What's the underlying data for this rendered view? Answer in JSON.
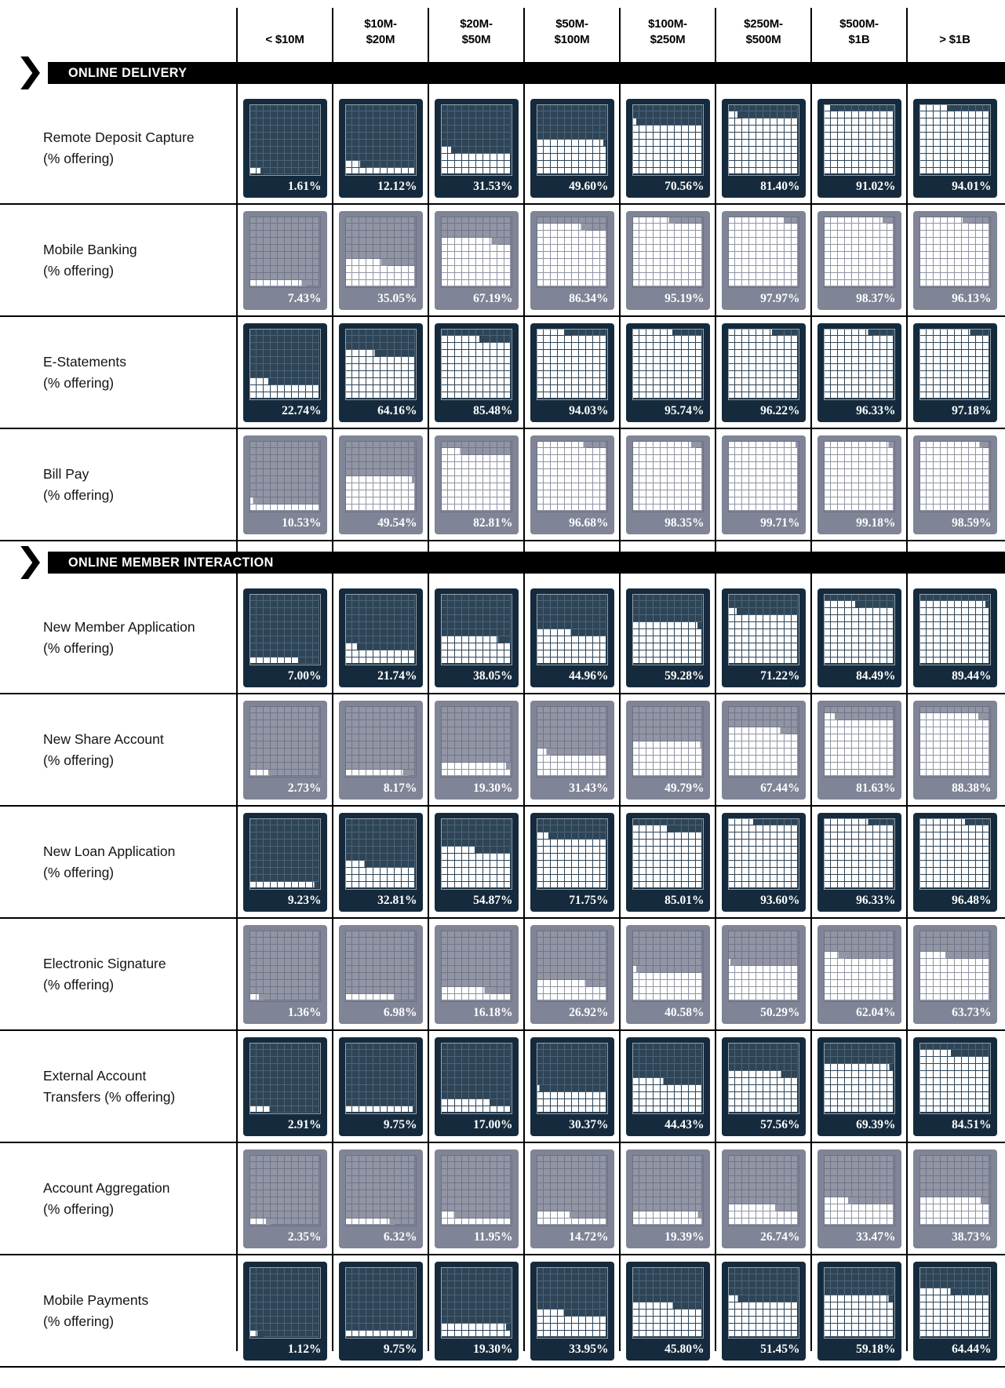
{
  "colors": {
    "navy_cell": "#152b3d",
    "navy_chart": "#2e4558",
    "navy_grid_empty": "#4d6375",
    "navy_chart_border": "#97a3ae",
    "gray_cell": "#7f8496",
    "gray_chart": "#9195a4",
    "gray_grid_empty": "#71758a",
    "gray_chart_border": "#6d7183",
    "fill_white": "#ffffff",
    "banner_black": "#000000"
  },
  "column_headers_display": [
    "< $10M",
    "$10M-\n$20M",
    "$20M-\n$50M",
    "$50M-\n$100M",
    "$100M-\n$250M",
    "$250M-\n$500M",
    "$500M-\n$1B",
    "> $1B"
  ],
  "chart_data": {
    "type": "table",
    "subtype": "waffle-small-multiples",
    "unit": "%",
    "note": "Each cell is a 10x10 waffle grid; one square = 1%; white squares fill bottom-up, left-to-right; value printed lower right.",
    "columns": [
      "< $10M",
      "$10M-$20M",
      "$20M-$50M",
      "$50M-$100M",
      "$100M-$250M",
      "$250M-$500M",
      "$500M-$1B",
      "> $1B"
    ],
    "sections": [
      {
        "title": "ONLINE DELIVERY",
        "rows": [
          {
            "label": "Remote Deposit Capture\n(% offering)",
            "values": [
              1.61,
              12.12,
              31.53,
              49.6,
              70.56,
              81.4,
              91.02,
              94.01
            ]
          },
          {
            "label": "Mobile Banking\n(% offering)",
            "values": [
              7.43,
              35.05,
              67.19,
              86.34,
              95.19,
              97.97,
              98.37,
              96.13
            ]
          },
          {
            "label": "E-Statements\n(% offering)",
            "values": [
              22.74,
              64.16,
              85.48,
              94.03,
              95.74,
              96.22,
              96.33,
              97.18
            ]
          },
          {
            "label": "Bill Pay\n(% offering)",
            "values": [
              10.53,
              49.54,
              82.81,
              96.68,
              98.35,
              99.71,
              99.18,
              98.59
            ]
          }
        ]
      },
      {
        "title": "ONLINE MEMBER INTERACTION",
        "rows": [
          {
            "label": "New Member Application\n(% offering)",
            "values": [
              7.0,
              21.74,
              38.05,
              44.96,
              59.28,
              71.22,
              84.49,
              89.44
            ]
          },
          {
            "label": "New Share Account\n(% offering)",
            "values": [
              2.73,
              8.17,
              19.3,
              31.43,
              49.79,
              67.44,
              81.63,
              88.38
            ]
          },
          {
            "label": "New Loan Application\n(% offering)",
            "values": [
              9.23,
              32.81,
              54.87,
              71.75,
              85.01,
              93.6,
              96.33,
              96.48
            ]
          },
          {
            "label": "Electronic Signature\n(% offering)",
            "values": [
              1.36,
              6.98,
              16.18,
              26.92,
              40.58,
              50.29,
              62.04,
              63.73
            ]
          },
          {
            "label": "External Account\nTransfers (% offering)",
            "values": [
              2.91,
              9.75,
              17.0,
              30.37,
              44.43,
              57.56,
              69.39,
              84.51
            ]
          },
          {
            "label": "Account Aggregation\n(% offering)",
            "values": [
              2.35,
              6.32,
              11.95,
              14.72,
              19.39,
              26.74,
              33.47,
              38.73
            ]
          },
          {
            "label": "Mobile Payments\n(% offering)",
            "values": [
              1.12,
              9.75,
              19.3,
              33.95,
              45.8,
              51.45,
              59.18,
              64.44
            ]
          }
        ]
      }
    ]
  }
}
